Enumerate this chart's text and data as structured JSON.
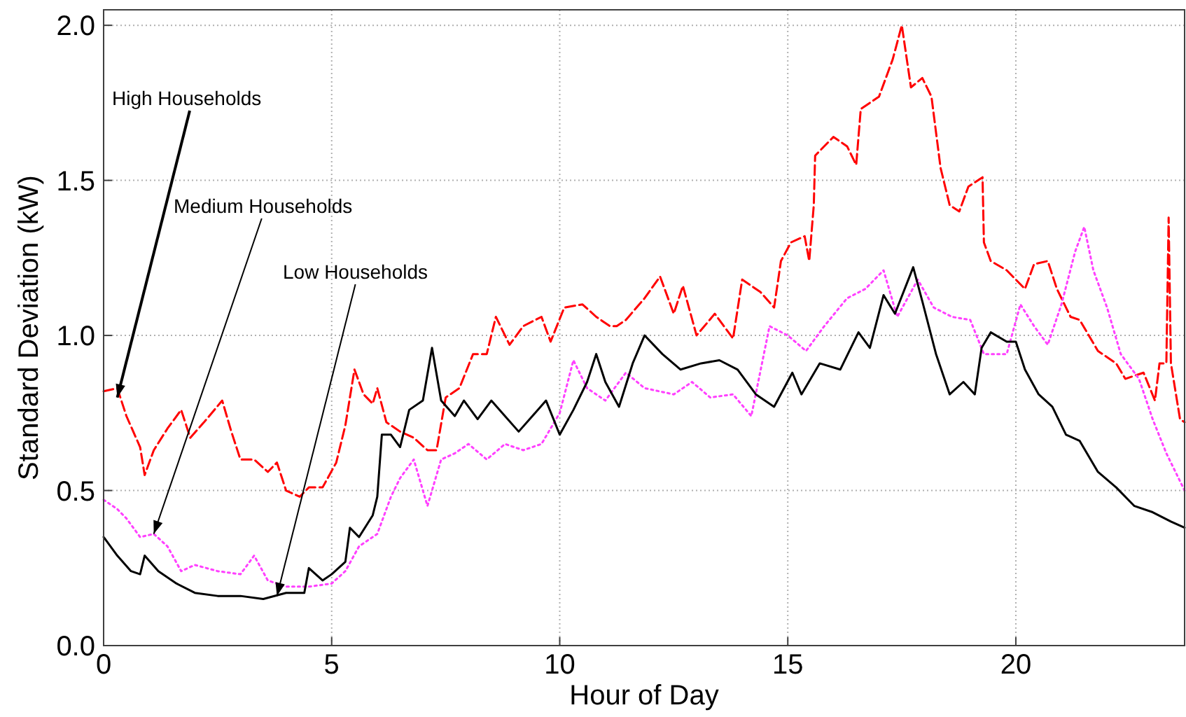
{
  "chart_data": {
    "type": "line",
    "xlabel": "Hour of Day",
    "ylabel": "Standard Deviation (kW)",
    "xlim": [
      0,
      23.7
    ],
    "ylim": [
      0,
      2.05
    ],
    "xticks": [
      0,
      5,
      10,
      15,
      20
    ],
    "yticks": [
      {
        "value": 0,
        "label": "0.0"
      },
      {
        "value": 0.5,
        "label": "0.5"
      },
      {
        "value": 1,
        "label": "1.0"
      },
      {
        "value": 1.5,
        "label": "1.5"
      },
      {
        "value": 2,
        "label": "2.0"
      }
    ],
    "grid": true,
    "annotations": [
      {
        "text": "High Households",
        "x": 0.3,
        "y": 0.8
      },
      {
        "text": "Medium Households",
        "x": 1.1,
        "y": 0.36
      },
      {
        "text": "Low Households",
        "x": 3.8,
        "y": 0.16
      }
    ],
    "series": [
      {
        "color": "#ff0000",
        "line_style": "dashed",
        "x": [
          0,
          0.3,
          0.5,
          0.8,
          0.9,
          1.1,
          1.4,
          1.7,
          1.9,
          2.2,
          2.6,
          2.8,
          3.0,
          3.3,
          3.6,
          3.8,
          4.0,
          4.3,
          4.5,
          4.8,
          5.1,
          5.3,
          5.5,
          5.7,
          5.9,
          6.0,
          6.2,
          6.5,
          6.8,
          7.1,
          7.3,
          7.5,
          7.8,
          8.1,
          8.4,
          8.6,
          8.9,
          9.2,
          9.6,
          9.8,
          10.1,
          10.5,
          10.8,
          11.1,
          11.25,
          11.45,
          11.86,
          12.2,
          12.5,
          12.7,
          13.0,
          13.4,
          13.8,
          14.0,
          14.4,
          14.7,
          14.85,
          15.07,
          15.37,
          15.47,
          15.57,
          15.6,
          16.0,
          16.3,
          16.5,
          16.6,
          17.0,
          17.3,
          17.5,
          17.7,
          17.95,
          18.15,
          18.35,
          18.55,
          18.76,
          18.96,
          19.27,
          19.3,
          19.45,
          19.8,
          20.0,
          20.2,
          20.4,
          20.7,
          20.9,
          21.2,
          21.4,
          21.8,
          22.2,
          22.4,
          22.8,
          23.05,
          23.15,
          23.3,
          23.35,
          23.4,
          23.6,
          23.7
        ],
        "values": [
          0.82,
          0.83,
          0.74,
          0.64,
          0.55,
          0.63,
          0.7,
          0.76,
          0.67,
          0.72,
          0.79,
          0.69,
          0.6,
          0.6,
          0.56,
          0.59,
          0.5,
          0.48,
          0.51,
          0.51,
          0.59,
          0.71,
          0.89,
          0.81,
          0.78,
          0.83,
          0.72,
          0.69,
          0.67,
          0.63,
          0.63,
          0.8,
          0.83,
          0.94,
          0.94,
          1.06,
          0.97,
          1.03,
          1.06,
          0.98,
          1.09,
          1.1,
          1.06,
          1.03,
          1.03,
          1.05,
          1.12,
          1.19,
          1.07,
          1.16,
          1.0,
          1.07,
          0.99,
          1.18,
          1.14,
          1.09,
          1.24,
          1.3,
          1.32,
          1.24,
          1.42,
          1.58,
          1.64,
          1.61,
          1.55,
          1.73,
          1.77,
          1.89,
          2.0,
          1.8,
          1.83,
          1.77,
          1.54,
          1.42,
          1.4,
          1.48,
          1.51,
          1.3,
          1.24,
          1.21,
          1.18,
          1.15,
          1.23,
          1.24,
          1.15,
          1.06,
          1.05,
          0.95,
          0.91,
          0.86,
          0.88,
          0.79,
          0.91,
          0.91,
          1.38,
          0.91,
          0.73,
          0.72
        ]
      },
      {
        "color": "#ff40ff",
        "line_style": "dotted",
        "x": [
          0,
          0.3,
          0.5,
          0.8,
          1.1,
          1.4,
          1.7,
          2.0,
          2.5,
          3.0,
          3.3,
          3.6,
          4.0,
          4.5,
          5.0,
          5.3,
          5.6,
          6.0,
          6.3,
          6.5,
          6.8,
          7.1,
          7.4,
          7.7,
          8.0,
          8.4,
          8.8,
          9.2,
          9.6,
          10.0,
          10.3,
          10.6,
          11.0,
          11.45,
          11.86,
          12.5,
          12.9,
          13.3,
          13.8,
          14.2,
          14.6,
          15.0,
          15.4,
          15.8,
          16.3,
          16.7,
          17.1,
          17.4,
          17.85,
          18.2,
          18.6,
          19.0,
          19.3,
          19.8,
          20.1,
          20.4,
          20.7,
          21.0,
          21.3,
          21.5,
          21.7,
          22.0,
          22.3,
          22.7,
          23.0,
          23.3,
          23.6,
          23.7
        ],
        "values": [
          0.47,
          0.44,
          0.41,
          0.35,
          0.36,
          0.32,
          0.24,
          0.26,
          0.24,
          0.23,
          0.29,
          0.21,
          0.19,
          0.19,
          0.2,
          0.24,
          0.32,
          0.36,
          0.48,
          0.54,
          0.6,
          0.45,
          0.6,
          0.62,
          0.65,
          0.6,
          0.65,
          0.63,
          0.65,
          0.75,
          0.92,
          0.83,
          0.79,
          0.88,
          0.83,
          0.81,
          0.85,
          0.8,
          0.81,
          0.74,
          1.03,
          1.0,
          0.95,
          1.03,
          1.12,
          1.15,
          1.21,
          1.06,
          1.18,
          1.09,
          1.06,
          1.05,
          0.94,
          0.94,
          1.1,
          1.03,
          0.97,
          1.1,
          1.27,
          1.35,
          1.21,
          1.09,
          0.94,
          0.86,
          0.73,
          0.62,
          0.53,
          0.5
        ]
      },
      {
        "color": "#000000",
        "line_style": "solid",
        "x": [
          0,
          0.3,
          0.6,
          0.8,
          0.9,
          1.2,
          1.6,
          2.0,
          2.5,
          3.0,
          3.5,
          4.0,
          4.4,
          4.5,
          4.8,
          5.0,
          5.3,
          5.4,
          5.6,
          5.9,
          6.0,
          6.1,
          6.3,
          6.5,
          6.7,
          7.0,
          7.2,
          7.4,
          7.7,
          7.9,
          8.2,
          8.5,
          8.8,
          9.1,
          9.4,
          9.7,
          10.0,
          10.3,
          10.6,
          10.8,
          11.0,
          11.3,
          11.6,
          11.86,
          12.25,
          12.65,
          13.1,
          13.5,
          13.9,
          14.3,
          14.7,
          15.1,
          15.3,
          15.7,
          16.15,
          16.55,
          16.8,
          17.1,
          17.35,
          17.75,
          17.95,
          18.25,
          18.55,
          18.85,
          19.1,
          19.25,
          19.45,
          19.8,
          20.0,
          20.2,
          20.5,
          20.8,
          21.1,
          21.4,
          21.8,
          22.2,
          22.6,
          23.0,
          23.4,
          23.7
        ],
        "values": [
          0.35,
          0.29,
          0.24,
          0.23,
          0.29,
          0.24,
          0.2,
          0.17,
          0.16,
          0.16,
          0.15,
          0.17,
          0.17,
          0.25,
          0.21,
          0.23,
          0.27,
          0.38,
          0.35,
          0.42,
          0.48,
          0.68,
          0.68,
          0.64,
          0.76,
          0.79,
          0.96,
          0.79,
          0.74,
          0.79,
          0.73,
          0.79,
          0.74,
          0.69,
          0.74,
          0.79,
          0.68,
          0.76,
          0.85,
          0.94,
          0.85,
          0.77,
          0.91,
          1.0,
          0.94,
          0.89,
          0.91,
          0.92,
          0.89,
          0.81,
          0.77,
          0.88,
          0.81,
          0.91,
          0.89,
          1.01,
          0.96,
          1.13,
          1.07,
          1.22,
          1.11,
          0.94,
          0.81,
          0.85,
          0.81,
          0.96,
          1.01,
          0.98,
          0.98,
          0.89,
          0.81,
          0.77,
          0.68,
          0.66,
          0.56,
          0.51,
          0.45,
          0.43,
          0.4,
          0.38
        ]
      }
    ]
  }
}
